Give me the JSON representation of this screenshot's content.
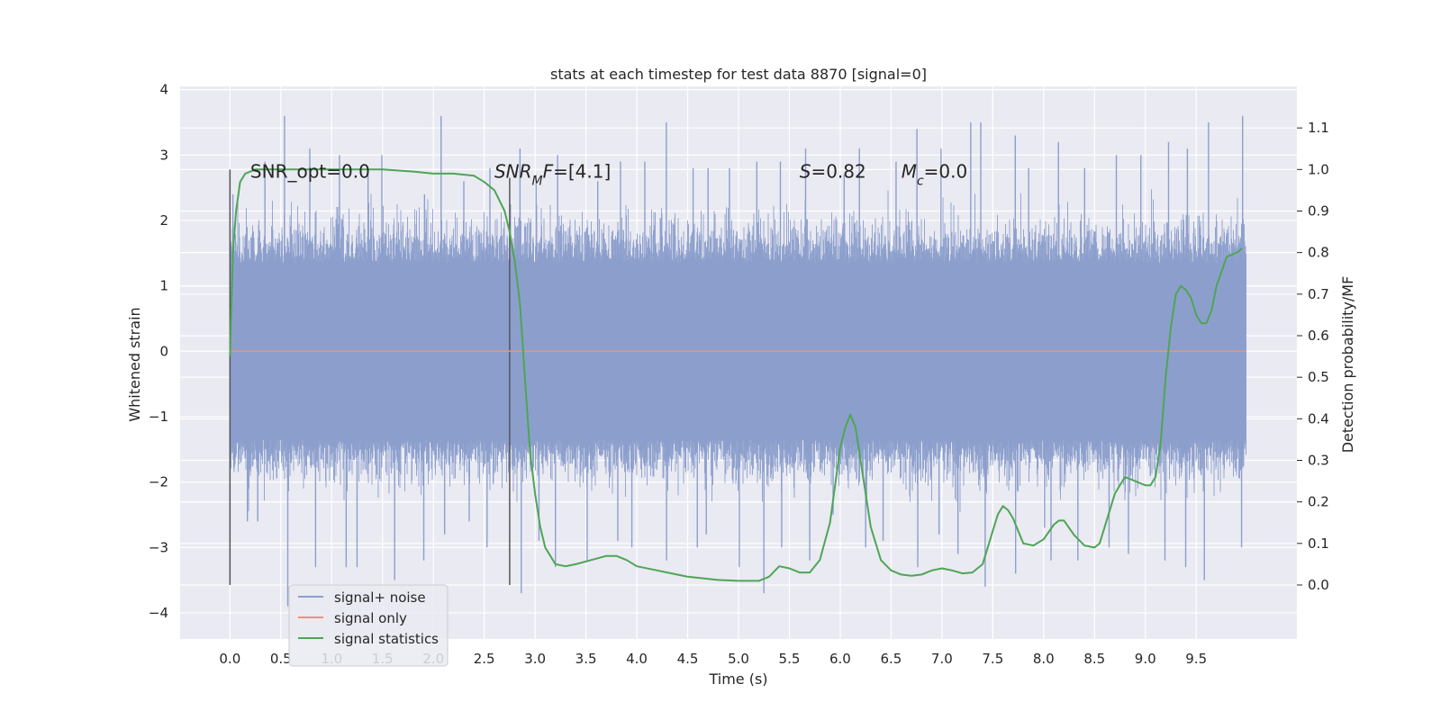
{
  "chart_data": {
    "type": "line",
    "title": "stats at each timestep for test data 8870 [signal=0]",
    "xlabel": "Time (s)",
    "ylabel_left": "Whitened strain",
    "ylabel_right": "Detection probability/MF",
    "xlim": [
      -0.49,
      10.49
    ],
    "ylim_left": [
      -4.4,
      4.05
    ],
    "ylim_right": [
      -0.13,
      1.2
    ],
    "x_ticks": [
      0.0,
      0.5,
      1.0,
      1.5,
      2.0,
      2.5,
      3.0,
      3.5,
      4.0,
      4.5,
      5.0,
      5.5,
      6.0,
      6.5,
      7.0,
      7.5,
      8.0,
      8.5,
      9.0,
      9.5
    ],
    "x_tick_labels": [
      "0.0",
      "0.5",
      "1.0",
      "1.5",
      "2.0",
      "2.5",
      "3.0",
      "3.5",
      "4.0",
      "4.5",
      "5.0",
      "5.5",
      "6.0",
      "6.5",
      "7.0",
      "7.5",
      "8.0",
      "8.5",
      "9.0",
      "9.5"
    ],
    "y_left_ticks": [
      -4,
      -3,
      -2,
      -1,
      0,
      1,
      2,
      3,
      4
    ],
    "y_left_tick_labels": [
      "−4",
      "−3",
      "−2",
      "−1",
      "0",
      "1",
      "2",
      "3",
      "4"
    ],
    "y_right_ticks": [
      0.0,
      0.1,
      0.2,
      0.3,
      0.4,
      0.5,
      0.6,
      0.7,
      0.8,
      0.9,
      1.0,
      1.1
    ],
    "y_right_tick_labels": [
      "0.0",
      "0.1",
      "0.2",
      "0.3",
      "0.4",
      "0.5",
      "0.6",
      "0.7",
      "0.8",
      "0.9",
      "1.0",
      "1.1"
    ],
    "grid": true,
    "legend_position": "lower-left",
    "annotations": [
      {
        "x": 0.2,
        "y_right": 0.98,
        "parts": [
          {
            "t": "SNR_opt=0.0",
            "italic": false
          }
        ]
      },
      {
        "x": 2.6,
        "y_right": 0.98,
        "parts": [
          {
            "t": "SNR",
            "italic": true
          },
          {
            "t": "M",
            "italic": true,
            "sub": true
          },
          {
            "t": "F",
            "italic": true
          },
          {
            "t": "=[4.1]",
            "italic": false
          }
        ]
      },
      {
        "x": 5.6,
        "y_right": 0.98,
        "parts": [
          {
            "t": "S",
            "italic": true
          },
          {
            "t": "=0.82",
            "italic": false
          }
        ]
      },
      {
        "x": 6.6,
        "y_right": 0.98,
        "parts": [
          {
            "t": "M",
            "italic": true
          },
          {
            "t": "c",
            "italic": true,
            "sub": true
          },
          {
            "t": "=0.0",
            "italic": false
          }
        ]
      }
    ],
    "vlines": [
      {
        "x": 0.0,
        "y0": 0.0,
        "y1": 1.0
      },
      {
        "x": 2.75,
        "y0": 0.0,
        "y1": 0.98
      }
    ],
    "series": [
      {
        "name": "signal+ noise",
        "axis": "left",
        "color": "#8c9fcc",
        "render": "noise_band",
        "x_range": [
          0.0,
          9.99
        ],
        "core_amplitude": 1.35,
        "peaks_max": [
          2.4,
          2.9,
          3.6,
          3.1,
          3.0,
          2.7,
          3.0,
          2.4,
          3.6,
          2.6,
          2.8,
          3.1,
          2.7,
          3.0,
          2.6,
          2.9,
          2.9,
          3.5,
          2.8,
          2.8,
          2.8,
          2.9,
          2.9,
          3.1,
          2.7,
          3.1,
          2.9,
          3.4,
          3.1,
          3.5,
          3.5,
          3.3,
          2.8,
          3.2,
          2.8,
          3.0,
          3.0,
          3.2,
          3.1,
          3.5,
          3.6
        ],
        "peaks_min": [
          -2.6,
          -2.6,
          -3.9,
          -3.3,
          -3.3,
          -3.3,
          -3.5,
          -3.2,
          -2.8,
          -2.6,
          -3.0,
          -3.7,
          -2.9,
          -3.3,
          -3.2,
          -2.9,
          -3.0,
          -3.2,
          -3.0,
          -2.8,
          -3.3,
          -3.7,
          -3.0,
          -3.2,
          -2.5,
          -3.0,
          -2.9,
          -3.3,
          -2.8,
          -3.1,
          -3.6,
          -3.4,
          -2.7,
          -3.2,
          -3.2,
          -3.0,
          -3.1,
          -3.2,
          -3.3,
          -3.5,
          -3.0
        ]
      },
      {
        "name": "signal only",
        "axis": "left",
        "color": "#e8957a",
        "x": [
          0.0,
          9.99
        ],
        "y": [
          0.0,
          0.0
        ]
      },
      {
        "name": "signal statistics",
        "axis": "right",
        "color": "#4ea556",
        "x": [
          0.0,
          0.03,
          0.06,
          0.1,
          0.15,
          0.25,
          0.4,
          0.7,
          1.0,
          1.5,
          1.8,
          2.0,
          2.2,
          2.4,
          2.5,
          2.6,
          2.7,
          2.75,
          2.8,
          2.85,
          2.9,
          2.95,
          3.0,
          3.05,
          3.1,
          3.15,
          3.2,
          3.3,
          3.4,
          3.55,
          3.7,
          3.8,
          3.9,
          4.0,
          4.2,
          4.5,
          4.8,
          5.0,
          5.1,
          5.2,
          5.3,
          5.4,
          5.5,
          5.6,
          5.7,
          5.8,
          5.9,
          6.0,
          6.05,
          6.1,
          6.15,
          6.2,
          6.3,
          6.4,
          6.5,
          6.6,
          6.7,
          6.8,
          6.9,
          7.0,
          7.1,
          7.2,
          7.3,
          7.4,
          7.45,
          7.5,
          7.55,
          7.6,
          7.65,
          7.7,
          7.75,
          7.8,
          7.9,
          8.0,
          8.1,
          8.15,
          8.2,
          8.3,
          8.4,
          8.5,
          8.55,
          8.6,
          8.7,
          8.8,
          8.9,
          9.0,
          9.05,
          9.1,
          9.15,
          9.2,
          9.25,
          9.3,
          9.35,
          9.4,
          9.45,
          9.5,
          9.55,
          9.6,
          9.65,
          9.7,
          9.8,
          9.9,
          9.95
        ],
        "y": [
          0.55,
          0.8,
          0.9,
          0.97,
          0.99,
          1.0,
          1.0,
          1.0,
          1.0,
          1.0,
          0.995,
          0.99,
          0.99,
          0.985,
          0.97,
          0.95,
          0.9,
          0.85,
          0.78,
          0.68,
          0.5,
          0.32,
          0.22,
          0.14,
          0.09,
          0.07,
          0.05,
          0.045,
          0.05,
          0.06,
          0.07,
          0.07,
          0.06,
          0.045,
          0.035,
          0.02,
          0.012,
          0.01,
          0.01,
          0.01,
          0.02,
          0.045,
          0.04,
          0.03,
          0.03,
          0.06,
          0.15,
          0.33,
          0.38,
          0.41,
          0.38,
          0.3,
          0.14,
          0.06,
          0.035,
          0.025,
          0.022,
          0.025,
          0.035,
          0.04,
          0.035,
          0.028,
          0.03,
          0.05,
          0.09,
          0.13,
          0.17,
          0.19,
          0.18,
          0.16,
          0.13,
          0.1,
          0.095,
          0.11,
          0.145,
          0.155,
          0.155,
          0.12,
          0.095,
          0.09,
          0.1,
          0.14,
          0.22,
          0.26,
          0.25,
          0.24,
          0.24,
          0.26,
          0.34,
          0.5,
          0.62,
          0.7,
          0.72,
          0.71,
          0.69,
          0.65,
          0.63,
          0.63,
          0.66,
          0.72,
          0.79,
          0.8,
          0.81
        ]
      }
    ]
  }
}
